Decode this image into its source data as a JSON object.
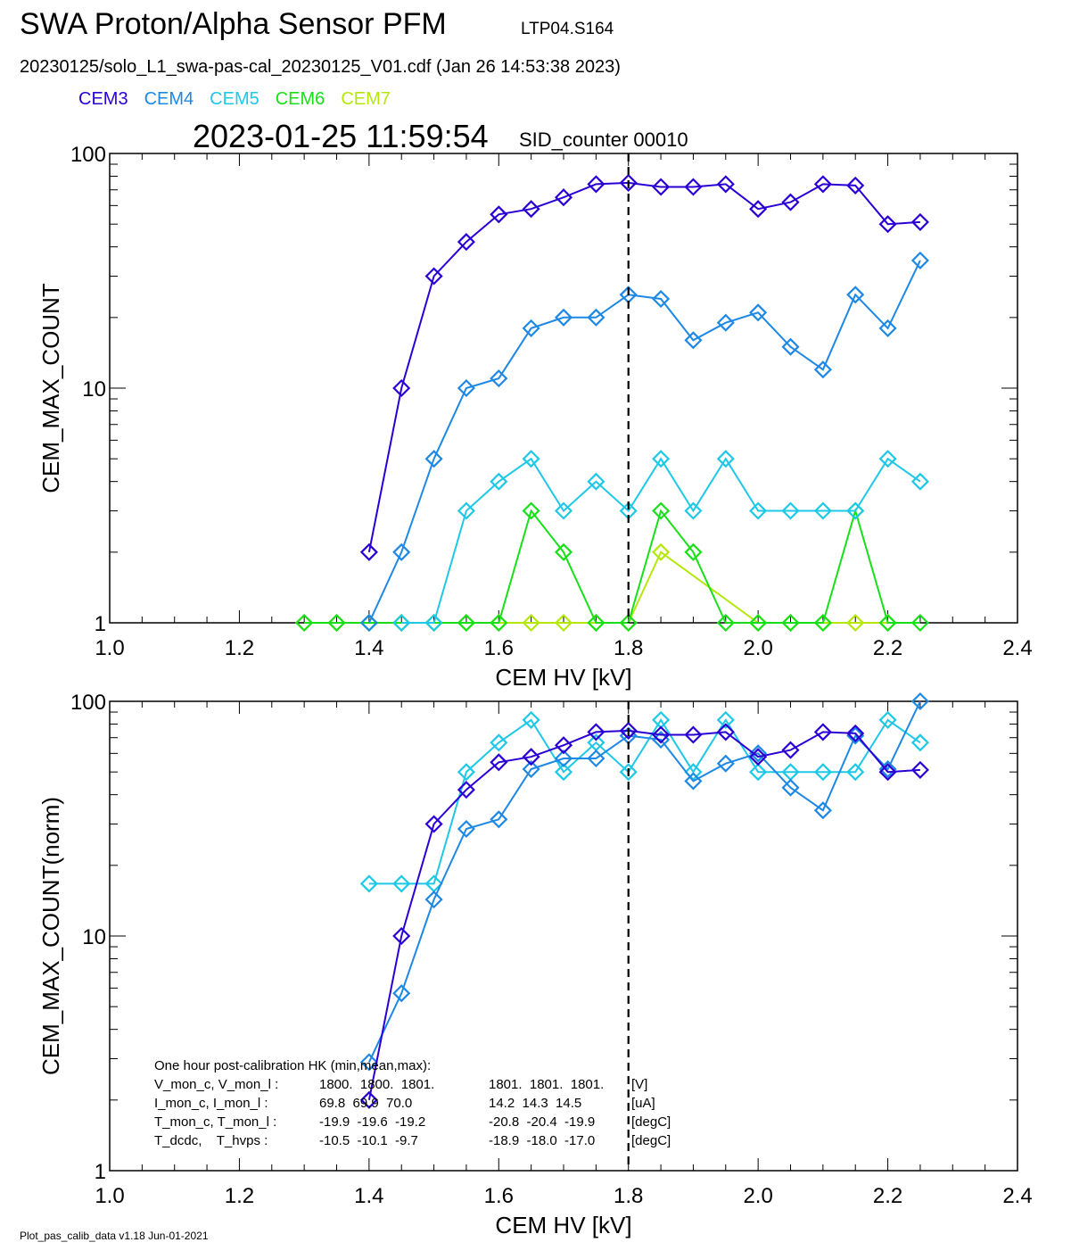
{
  "header": {
    "title": "SWA Proton/Alpha Sensor PFM",
    "title_code": "LTP04.S164",
    "subtitle": "20230125/solo_L1_swa-pas-cal_20230125_V01.cdf  (Jan 26 14:53:38 2023)",
    "timestamp": "2023-01-25 11:59:54",
    "sid": "SID_counter 00010"
  },
  "legend": [
    {
      "label": "CEM3",
      "color": "#2a00d5"
    },
    {
      "label": "CEM4",
      "color": "#1e88e5"
    },
    {
      "label": "CEM5",
      "color": "#1ec8e6"
    },
    {
      "label": "CEM6",
      "color": "#18e018"
    },
    {
      "label": "CEM7",
      "color": "#b4e80a"
    }
  ],
  "footer": "Plot_pas_calib_data v1.18 Jun-01-2021",
  "hk": {
    "heading": "One hour post-calibration HK (min,mean,max):",
    "rows": [
      {
        "name": "V_mon_c, V_mon_l :",
        "c": "1800.  1800.  1801.",
        "l": "1801.  1801.  1801.",
        "unit": "[V]"
      },
      {
        "name": "I_mon_c, I_mon_l :",
        "c": "69.8  69.9  70.0",
        "l": "14.2  14.3  14.5",
        "unit": "[uA]"
      },
      {
        "name": "T_mon_c, T_mon_l :",
        "c": "-19.9  -19.6  -19.2",
        "l": "-20.8  -20.4  -19.9",
        "unit": "[degC]"
      },
      {
        "name": "T_dcdc,    T_hvps :",
        "c": "-10.5  -10.1  -9.7",
        "l": "-18.9  -18.0  -17.0",
        "unit": "[degC]"
      }
    ]
  },
  "chart_data": [
    {
      "type": "line",
      "xlabel": "CEM HV [kV]",
      "ylabel": "CEM_MAX_COUNT",
      "xlim": [
        1.0,
        2.4
      ],
      "ylim": [
        1,
        100
      ],
      "yscale": "log",
      "xticks": [
        "1.0",
        "1.2",
        "1.4",
        "1.6",
        "1.8",
        "2.0",
        "2.2",
        "2.4"
      ],
      "yticks": [
        "1",
        "10",
        "100"
      ],
      "vline": 1.8,
      "grid": false,
      "series": [
        {
          "name": "CEM3",
          "color": "#2a00d5",
          "x": [
            1.4,
            1.45,
            1.5,
            1.55,
            1.6,
            1.65,
            1.7,
            1.75,
            1.8,
            1.85,
            1.9,
            1.95,
            2.0,
            2.05,
            2.1,
            2.15,
            2.2,
            2.25
          ],
          "y": [
            2,
            10,
            30,
            42,
            55,
            58,
            65,
            74,
            75,
            72,
            72,
            74,
            58,
            62,
            74,
            73,
            50,
            51
          ]
        },
        {
          "name": "CEM4",
          "color": "#1e88e5",
          "x": [
            1.4,
            1.45,
            1.5,
            1.55,
            1.6,
            1.65,
            1.7,
            1.75,
            1.8,
            1.85,
            1.9,
            1.95,
            2.0,
            2.05,
            2.1,
            2.15,
            2.2,
            2.25
          ],
          "y": [
            1,
            2,
            5,
            10,
            11,
            18,
            20,
            20,
            25,
            24,
            16,
            19,
            21,
            15,
            12,
            25,
            18,
            35
          ]
        },
        {
          "name": "CEM5",
          "color": "#1ec8e6",
          "x": [
            1.45,
            1.5,
            1.55,
            1.6,
            1.65,
            1.7,
            1.75,
            1.8,
            1.85,
            1.9,
            1.95,
            2.0,
            2.05,
            2.1,
            2.15,
            2.2,
            2.25
          ],
          "y": [
            1,
            1,
            3,
            4,
            5,
            3,
            4,
            3,
            5,
            3,
            5,
            3,
            3,
            3,
            3,
            5,
            4
          ]
        },
        {
          "name": "CEM6",
          "color": "#18e018",
          "x": [
            1.3,
            1.35,
            1.4,
            1.45,
            1.5,
            1.55,
            1.6,
            1.65,
            1.7,
            1.75,
            1.8,
            1.85,
            1.9,
            1.95,
            2.0,
            2.05,
            2.1,
            2.15,
            2.2,
            2.25
          ],
          "y": [
            1,
            1,
            1,
            1,
            1,
            1,
            1,
            3,
            2,
            1,
            1,
            3,
            2,
            1,
            1,
            1,
            1,
            3,
            1,
            1
          ]
        },
        {
          "name": "CEM7",
          "color": "#b4e80a",
          "x": [
            1.3,
            1.35,
            1.4,
            1.45,
            1.5,
            1.55,
            1.6,
            1.65,
            1.7,
            1.75,
            1.8,
            1.85,
            2.0,
            2.05,
            2.1,
            2.15,
            2.2
          ],
          "y": [
            1,
            1,
            1,
            1,
            1,
            1,
            1,
            1,
            1,
            1,
            1,
            2,
            1,
            1,
            1,
            1,
            1
          ]
        }
      ]
    },
    {
      "type": "line",
      "xlabel": "CEM HV [kV]",
      "ylabel": "CEM_MAX_COUNT(norm)",
      "xlim": [
        1.0,
        2.4
      ],
      "ylim": [
        1,
        100
      ],
      "yscale": "log",
      "xticks": [
        "1.0",
        "1.2",
        "1.4",
        "1.6",
        "1.8",
        "2.0",
        "2.2",
        "2.4"
      ],
      "yticks": [
        "1",
        "10",
        "100"
      ],
      "vline": 1.8,
      "grid": false,
      "series": [
        {
          "name": "CEM3",
          "color": "#2a00d5",
          "x": [
            1.4,
            1.45,
            1.5,
            1.55,
            1.6,
            1.65,
            1.7,
            1.75,
            1.8,
            1.85,
            1.9,
            1.95,
            2.0,
            2.05,
            2.1,
            2.15,
            2.2,
            2.25
          ],
          "y": [
            2,
            10,
            30,
            42,
            55,
            58,
            65,
            74,
            75,
            72,
            72,
            74,
            58,
            62,
            74,
            73,
            50,
            51
          ]
        },
        {
          "name": "CEM4",
          "color": "#1e88e5",
          "x": [
            1.4,
            1.45,
            1.5,
            1.55,
            1.6,
            1.65,
            1.7,
            1.75,
            1.8,
            1.85,
            1.9,
            1.95,
            2.0,
            2.05,
            2.1,
            2.15,
            2.2,
            2.25
          ],
          "y": [
            2.9,
            5.7,
            14.3,
            28.6,
            31.4,
            51.4,
            57.1,
            57.1,
            71.4,
            68.6,
            45.7,
            54.3,
            60,
            42.9,
            34.3,
            71.4,
            51.4,
            100
          ]
        },
        {
          "name": "CEM5",
          "color": "#1ec8e6",
          "x": [
            1.4,
            1.45,
            1.5,
            1.55,
            1.6,
            1.65,
            1.7,
            1.75,
            1.8,
            1.85,
            1.9,
            1.95,
            2.0,
            2.05,
            2.1,
            2.15,
            2.2,
            2.25
          ],
          "y": [
            16.7,
            16.7,
            16.7,
            50,
            66.7,
            83.3,
            50,
            66.7,
            50,
            83.3,
            50,
            83.3,
            50,
            50,
            50,
            50,
            83.3,
            66.7
          ]
        }
      ]
    }
  ]
}
